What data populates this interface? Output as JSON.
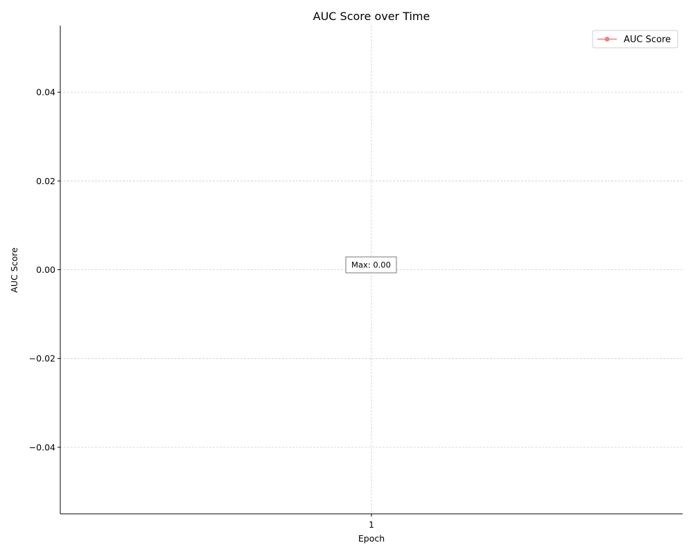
{
  "chart_data": {
    "type": "line",
    "title": "AUC Score over Time",
    "xlabel": "Epoch",
    "ylabel": "AUC Score",
    "x": [
      1
    ],
    "x_tick_labels": [
      "1"
    ],
    "series": [
      {
        "name": "AUC Score",
        "values": [
          0.0
        ],
        "color": "#f08080"
      }
    ],
    "ylim": [
      -0.055,
      0.055
    ],
    "y_ticks": [
      -0.04,
      -0.02,
      0.0,
      0.02,
      0.04
    ],
    "y_tick_labels": [
      "−0.04",
      "−0.02",
      "0.00",
      "0.02",
      "0.04"
    ],
    "grid": true,
    "legend_position": "top-right",
    "annotation": {
      "text": "Max: 0.00",
      "x": 1,
      "y": 0.0
    }
  }
}
